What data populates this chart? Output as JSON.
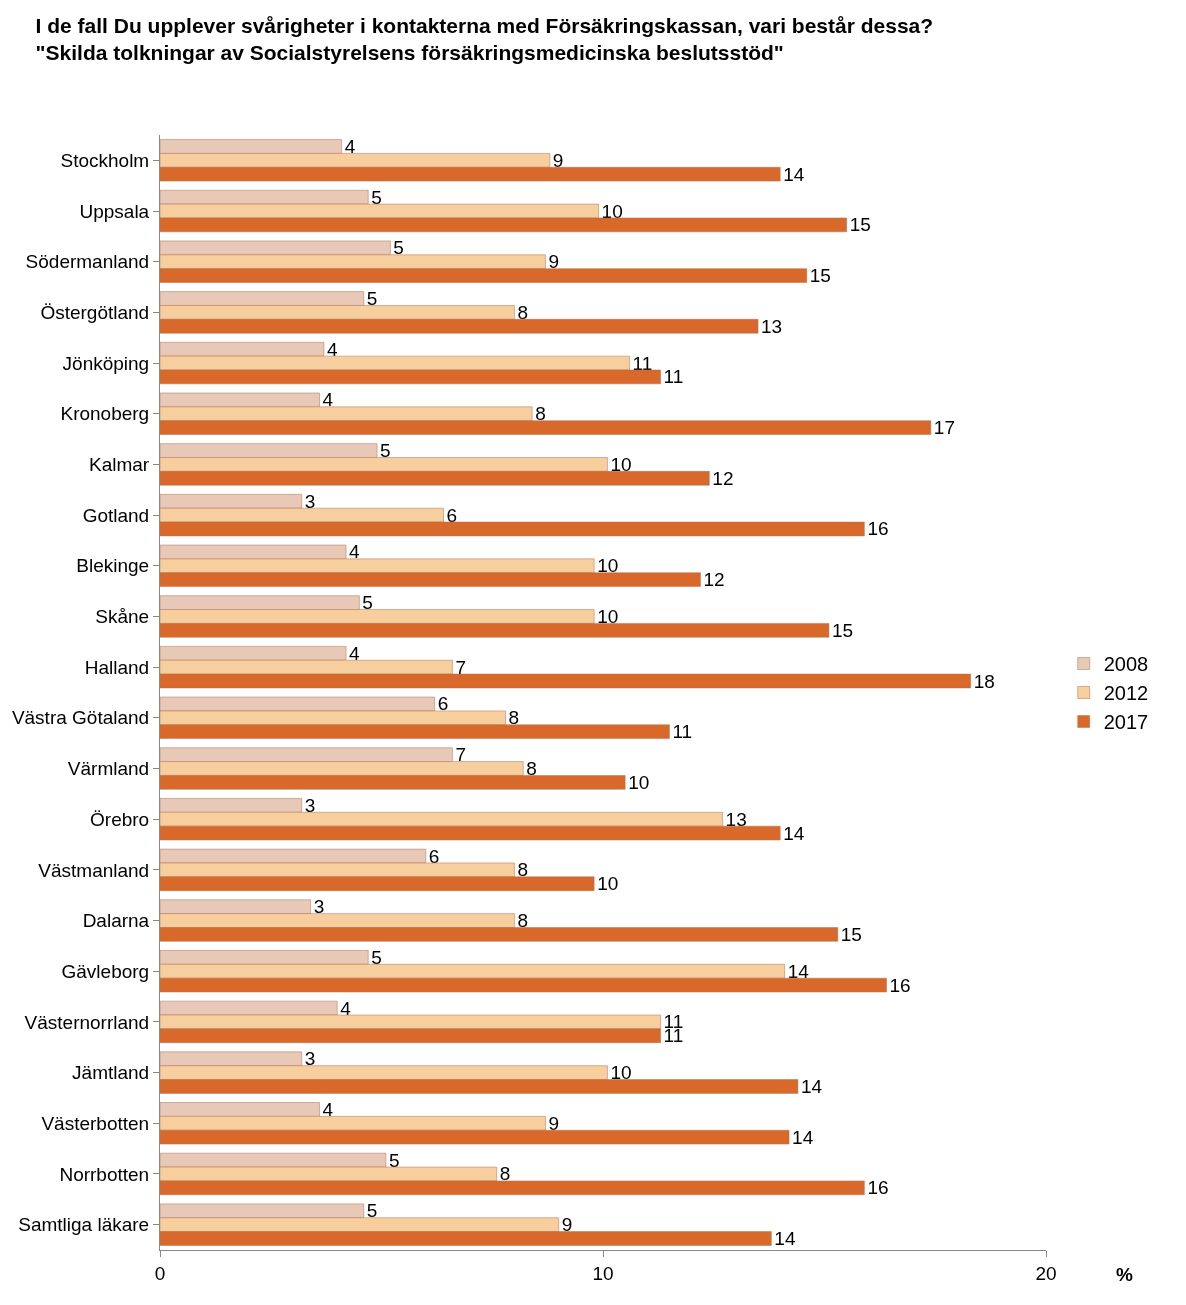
{
  "chart_data": {
    "type": "bar",
    "orientation": "horizontal",
    "title": "I de fall Du upplever svårigheter i kontakterna med Försäkringskassan, vari består dessa?\n\"Skilda tolkningar av Socialstyrelsens försäkringsmedicinska beslutsstöd\"",
    "xlabel": "%",
    "categories": [
      "Stockholm",
      "Uppsala",
      "Södermanland",
      "Östergötland",
      "Jönköping",
      "Kronoberg",
      "Kalmar",
      "Gotland",
      "Blekinge",
      "Skåne",
      "Halland",
      "Västra Götaland",
      "Värmland",
      "Örebro",
      "Västmanland",
      "Dalarna",
      "Gävleborg",
      "Västernorrland",
      "Jämtland",
      "Västerbotten",
      "Norrbotten",
      "Samtliga läkare"
    ],
    "series": [
      {
        "name": "2008",
        "color": "#e8c9b8",
        "values": [
          4.1,
          4.7,
          5.2,
          4.6,
          3.7,
          3.6,
          4.9,
          3.2,
          4.2,
          4.5,
          4.2,
          6.2,
          6.6,
          3.2,
          6.0,
          3.4,
          4.7,
          4.0,
          3.2,
          3.6,
          5.1,
          4.6
        ],
        "value_labels": [
          "4",
          "5",
          "5",
          "5",
          "4",
          "4",
          "5",
          "3",
          "4",
          "5",
          "4",
          "6",
          "7",
          "3",
          "6",
          "3",
          "5",
          "4",
          "3",
          "4",
          "5",
          "5"
        ]
      },
      {
        "name": "2012",
        "color": "#f7cf9f",
        "values": [
          8.8,
          9.9,
          8.7,
          8.0,
          10.6,
          8.4,
          10.1,
          6.4,
          9.8,
          9.8,
          6.6,
          7.8,
          8.2,
          12.7,
          8.0,
          8.0,
          14.1,
          11.3,
          10.1,
          8.7,
          7.6,
          9.0
        ],
        "value_labels": [
          "9",
          "10",
          "9",
          "8",
          "11",
          "8",
          "10",
          "6",
          "10",
          "10",
          "7",
          "8",
          "8",
          "13",
          "8",
          "8",
          "14",
          "11",
          "10",
          "9",
          "8",
          "9"
        ]
      },
      {
        "name": "2017",
        "color": "#d9692a",
        "values": [
          14.0,
          15.5,
          14.6,
          13.5,
          11.3,
          17.4,
          12.4,
          15.9,
          12.2,
          15.1,
          18.3,
          11.5,
          10.5,
          14.0,
          9.8,
          15.3,
          16.4,
          11.3,
          14.4,
          14.2,
          15.9,
          13.8
        ],
        "value_labels": [
          "14",
          "15",
          "15",
          "13",
          "11",
          "17",
          "12",
          "16",
          "12",
          "15",
          "18",
          "11",
          "10",
          "14",
          "10",
          "15",
          "16",
          "11",
          "14",
          "14",
          "16",
          "14"
        ]
      }
    ],
    "xlim": [
      0,
      20
    ],
    "xticks": [
      0,
      10,
      20
    ],
    "legend": "right"
  }
}
